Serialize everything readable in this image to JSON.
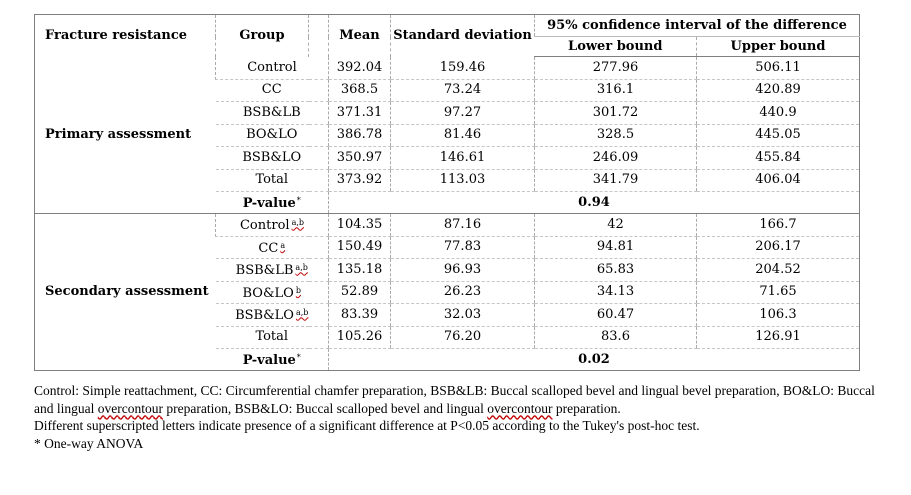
{
  "table": {
    "headers": {
      "fracture_resistance": "Fracture resistance",
      "group": "Group",
      "mean": "Mean",
      "standard_deviation": "Standard deviation",
      "ci": "95% confidence interval of the difference",
      "lower_bound": "Lower bound",
      "upper_bound": "Upper bound"
    },
    "sections": [
      {
        "assessment": "Primary assessment",
        "rows": [
          {
            "group": "Control",
            "sup": "",
            "mean": "392.04",
            "sd": "159.46",
            "lower": "277.96",
            "upper": "506.11"
          },
          {
            "group": "CC",
            "sup": "",
            "mean": "368.5",
            "sd": "73.24",
            "lower": "316.1",
            "upper": "420.89"
          },
          {
            "group": "BSB&LB",
            "sup": "",
            "mean": "371.31",
            "sd": "97.27",
            "lower": "301.72",
            "upper": "440.9"
          },
          {
            "group": "BO&LO",
            "sup": "",
            "mean": "386.78",
            "sd": "81.46",
            "lower": "328.5",
            "upper": "445.05"
          },
          {
            "group": "BSB&LO",
            "sup": "",
            "mean": "350.97",
            "sd": "146.61",
            "lower": "246.09",
            "upper": "455.84"
          },
          {
            "group": "Total",
            "sup": "",
            "mean": "373.92",
            "sd": "113.03",
            "lower": "341.79",
            "upper": "406.04"
          }
        ],
        "pvalue_label": "P-value",
        "pvalue_mark": "*",
        "pvalue": "0.94"
      },
      {
        "assessment": "Secondary assessment",
        "rows": [
          {
            "group": "Control",
            "sup": "a,b",
            "mean": "104.35",
            "sd": "87.16",
            "lower": "42",
            "upper": "166.7"
          },
          {
            "group": "CC",
            "sup": "a",
            "mean": "150.49",
            "sd": "77.83",
            "lower": "94.81",
            "upper": "206.17"
          },
          {
            "group": "BSB&LB",
            "sup": "a,b",
            "mean": "135.18",
            "sd": "96.93",
            "lower": "65.83",
            "upper": "204.52"
          },
          {
            "group": "BO&LO",
            "sup": "b",
            "mean": "52.89",
            "sd": "26.23",
            "lower": "34.13",
            "upper": "71.65"
          },
          {
            "group": "BSB&LO",
            "sup": "a,b",
            "mean": "83.39",
            "sd": "32.03",
            "lower": "60.47",
            "upper": "106.3"
          },
          {
            "group": "Total",
            "sup": "",
            "mean": "105.26",
            "sd": "76.20",
            "lower": "83.6",
            "upper": "126.91"
          }
        ],
        "pvalue_label": "P-value",
        "pvalue_mark": "*",
        "pvalue": "0.02"
      }
    ]
  },
  "notes": {
    "abbreviations_part1": "Control: Simple reattachment, CC: Circumferential chamfer preparation, BSB&LB: Buccal scalloped bevel and lingual bevel preparation, BO&LO: Buccal and lingual ",
    "abbreviations_word1": "overcontour",
    "abbreviations_part2": " preparation, BSB&LO: Buccal scalloped bevel and lingual ",
    "abbreviations_word2": "overcontour",
    "abbreviations_part3": " preparation.",
    "superscript_note": "Different superscripted letters indicate presence of a significant difference at P<0.05 according to the Tukey's post-hoc test.",
    "anova_note": "* One-way ANOVA"
  }
}
